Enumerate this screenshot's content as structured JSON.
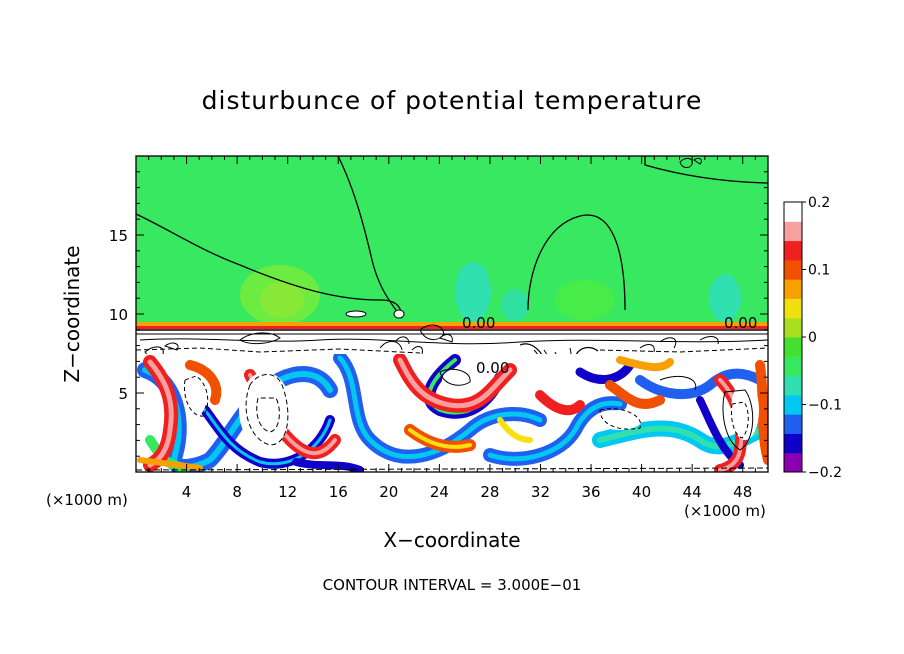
{
  "chart_data": {
    "type": "heatmap",
    "title": "disturbunce of potential temperature",
    "xlabel": "X−coordinate",
    "ylabel": "Z−coordinate",
    "x_unit_left": "(×1000 m)",
    "x_unit_right": "(×1000 m)",
    "x_ticks": [
      4,
      8,
      12,
      16,
      20,
      24,
      28,
      32,
      36,
      40,
      44,
      48
    ],
    "y_ticks": [
      5,
      10,
      15
    ],
    "xlim": [
      0,
      50
    ],
    "ylim": [
      0,
      20
    ],
    "colorbar": {
      "ticks": [
        "0.2",
        "0.1",
        "0",
        "−0.1",
        "−0.2"
      ],
      "range": [
        -0.2,
        0.2
      ]
    },
    "contour_labels": [
      "0.00",
      "0.00",
      "0.00"
    ],
    "footer": "CONTOUR INTERVAL = 3.000E−01",
    "colors": [
      "#8a00b0",
      "#1000c8",
      "#2060f0",
      "#00c8f0",
      "#30e0b0",
      "#38e860",
      "#44e030",
      "#a8e020",
      "#f0e010",
      "#f8a000",
      "#f05000",
      "#f02020",
      "#f8a0a0",
      "#ffffff"
    ]
  }
}
